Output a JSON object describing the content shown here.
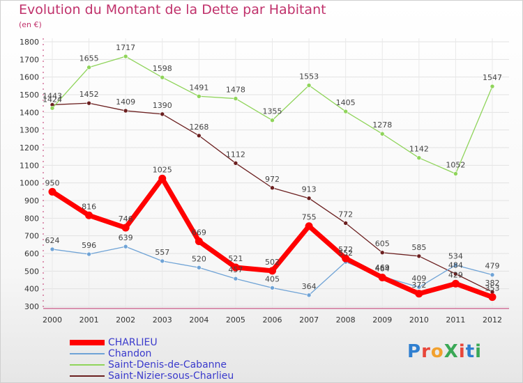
{
  "title": "Evolution du Montant de la Dette par Habitant",
  "subtitle": "(en €)",
  "logo_text": "ProXiti",
  "chart_data": {
    "type": "line",
    "x": [
      "2000",
      "2001",
      "2002",
      "2003",
      "2004",
      "2005",
      "2006",
      "2007",
      "2008",
      "2009",
      "2010",
      "2011",
      "2012"
    ],
    "ylim": [
      300,
      1800
    ],
    "yticks": [
      "300",
      "400",
      "500",
      "600",
      "700",
      "800",
      "900",
      "1000",
      "1100",
      "1200",
      "1300",
      "1400",
      "1500",
      "1600",
      "1700",
      "1800"
    ],
    "grid": true,
    "legend_position": "bottom-left",
    "series": [
      {
        "name": "CHARLIEU",
        "color": "#ff0000",
        "values": [
          950,
          816,
          746,
          1025,
          669,
          521,
          502,
          755,
          572,
          464,
          372,
          429,
          353
        ]
      },
      {
        "name": "Chandon",
        "color": "#6fa3d6",
        "values": [
          624,
          596,
          639,
          557,
          520,
          457,
          405,
          364,
          552,
          469,
          409,
          534,
          479
        ]
      },
      {
        "name": "Saint-Denis-de-Cabanne",
        "color": "#8fd45a",
        "values": [
          1424,
          1655,
          1717,
          1598,
          1491,
          1478,
          1355,
          1553,
          1405,
          1278,
          1142,
          1052,
          1547
        ]
      },
      {
        "name": "Saint-Nizier-sous-Charlieu",
        "color": "#6b1f1f",
        "values": [
          1443,
          1452,
          1409,
          1390,
          1268,
          1112,
          972,
          913,
          772,
          605,
          585,
          484,
          382
        ]
      }
    ]
  }
}
